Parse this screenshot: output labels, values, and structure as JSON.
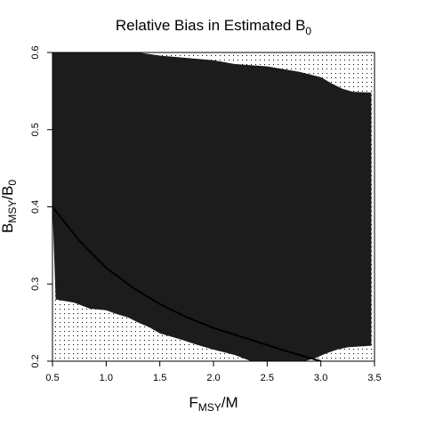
{
  "chart_data": {
    "type": "heatmap",
    "title": "Relative Bias in Estimated B",
    "title_subscript": "0",
    "xlabel": "F",
    "xlabel_subscript": "MSY",
    "xlabel_suffix": "/M",
    "ylabel": "B",
    "ylabel_subscript": "MSY",
    "ylabel_suffix": "/B",
    "ylabel_suffix_subscript": "0",
    "xlim": [
      0.5,
      3.5
    ],
    "ylim": [
      0.2,
      0.6
    ],
    "x_ticks": [
      "0.5",
      "1.0",
      "1.5",
      "2.0",
      "2.5",
      "3.0",
      "3.5"
    ],
    "y_ticks": [
      "0.2",
      "0.3",
      "0.4",
      "0.5",
      "0.6"
    ],
    "grid": false,
    "legend": "none",
    "colors": {
      "region": "#1c1c1c",
      "dotted": "#000000",
      "curve": "#000000",
      "background": "#ffffff"
    },
    "region_upper_boundary": [
      {
        "x": 0.5,
        "y": 0.6
      },
      {
        "x": 1.0,
        "y": 0.6
      },
      {
        "x": 1.3,
        "y": 0.6
      },
      {
        "x": 1.5,
        "y": 0.596
      },
      {
        "x": 2.0,
        "y": 0.59
      },
      {
        "x": 2.2,
        "y": 0.585
      },
      {
        "x": 2.5,
        "y": 0.582
      },
      {
        "x": 2.8,
        "y": 0.575
      },
      {
        "x": 3.0,
        "y": 0.568
      },
      {
        "x": 3.1,
        "y": 0.56
      },
      {
        "x": 3.2,
        "y": 0.553
      },
      {
        "x": 3.3,
        "y": 0.549
      },
      {
        "x": 3.47,
        "y": 0.548
      }
    ],
    "region_lower_boundary": [
      {
        "x": 0.5,
        "y": 0.6
      },
      {
        "x": 0.5,
        "y": 0.4
      },
      {
        "x": 0.53,
        "y": 0.28
      },
      {
        "x": 0.7,
        "y": 0.276
      },
      {
        "x": 0.85,
        "y": 0.268
      },
      {
        "x": 1.0,
        "y": 0.266
      },
      {
        "x": 1.1,
        "y": 0.261
      },
      {
        "x": 1.2,
        "y": 0.257
      },
      {
        "x": 1.3,
        "y": 0.25
      },
      {
        "x": 1.4,
        "y": 0.244
      },
      {
        "x": 1.5,
        "y": 0.236
      },
      {
        "x": 1.7,
        "y": 0.228
      },
      {
        "x": 1.85,
        "y": 0.221
      },
      {
        "x": 2.0,
        "y": 0.215
      },
      {
        "x": 2.2,
        "y": 0.208
      },
      {
        "x": 2.35,
        "y": 0.2
      },
      {
        "x": 2.85,
        "y": 0.2
      },
      {
        "x": 2.95,
        "y": 0.204
      },
      {
        "x": 3.05,
        "y": 0.21
      },
      {
        "x": 3.15,
        "y": 0.215
      },
      {
        "x": 3.25,
        "y": 0.218
      },
      {
        "x": 3.47,
        "y": 0.22
      }
    ],
    "series": [
      {
        "type": "line",
        "x": [
          0.5,
          0.75,
          1.0,
          1.25,
          1.5,
          1.75,
          2.0,
          2.25,
          2.5,
          2.75,
          3.0
        ],
        "y": [
          0.4,
          0.356,
          0.321,
          0.295,
          0.274,
          0.257,
          0.243,
          0.232,
          0.221,
          0.21,
          0.2
        ]
      }
    ]
  }
}
